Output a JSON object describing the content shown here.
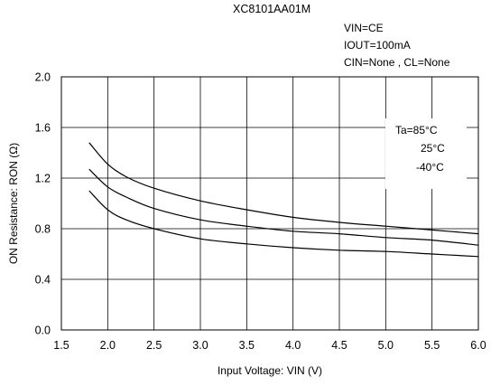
{
  "chart_data": {
    "type": "line",
    "title": "XC8101AA01M",
    "conditions": [
      "VIN=CE",
      "IOUT=100mA",
      "CIN=None , CL=None"
    ],
    "xlabel": "Input Voltage: VIN (V)",
    "ylabel": "ON Resistance: RON (Ω)",
    "xlim": [
      1.5,
      6.0
    ],
    "ylim": [
      0.0,
      2.0
    ],
    "xticks": [
      "1.5",
      "2.0",
      "2.5",
      "3.0",
      "3.5",
      "4.0",
      "4.5",
      "5.0",
      "5.5",
      "6.0"
    ],
    "yticks": [
      "0.0",
      "0.4",
      "0.8",
      "1.2",
      "1.6",
      "2.0"
    ],
    "grid": true,
    "legend": [
      "Ta=85°C",
      "25°C",
      "-40°C"
    ],
    "legend_position": "top-right",
    "x": [
      1.8,
      2.0,
      2.2,
      2.5,
      3.0,
      3.5,
      4.0,
      4.5,
      5.0,
      5.5,
      6.0
    ],
    "series": [
      {
        "name": "Ta=85°C",
        "values": [
          1.48,
          1.31,
          1.21,
          1.12,
          1.02,
          0.95,
          0.89,
          0.85,
          0.82,
          0.79,
          0.76
        ]
      },
      {
        "name": "25°C",
        "values": [
          1.27,
          1.13,
          1.05,
          0.96,
          0.87,
          0.82,
          0.78,
          0.76,
          0.73,
          0.71,
          0.67
        ]
      },
      {
        "name": "-40°C",
        "values": [
          1.1,
          0.95,
          0.87,
          0.8,
          0.72,
          0.68,
          0.65,
          0.63,
          0.62,
          0.6,
          0.58
        ]
      }
    ]
  }
}
